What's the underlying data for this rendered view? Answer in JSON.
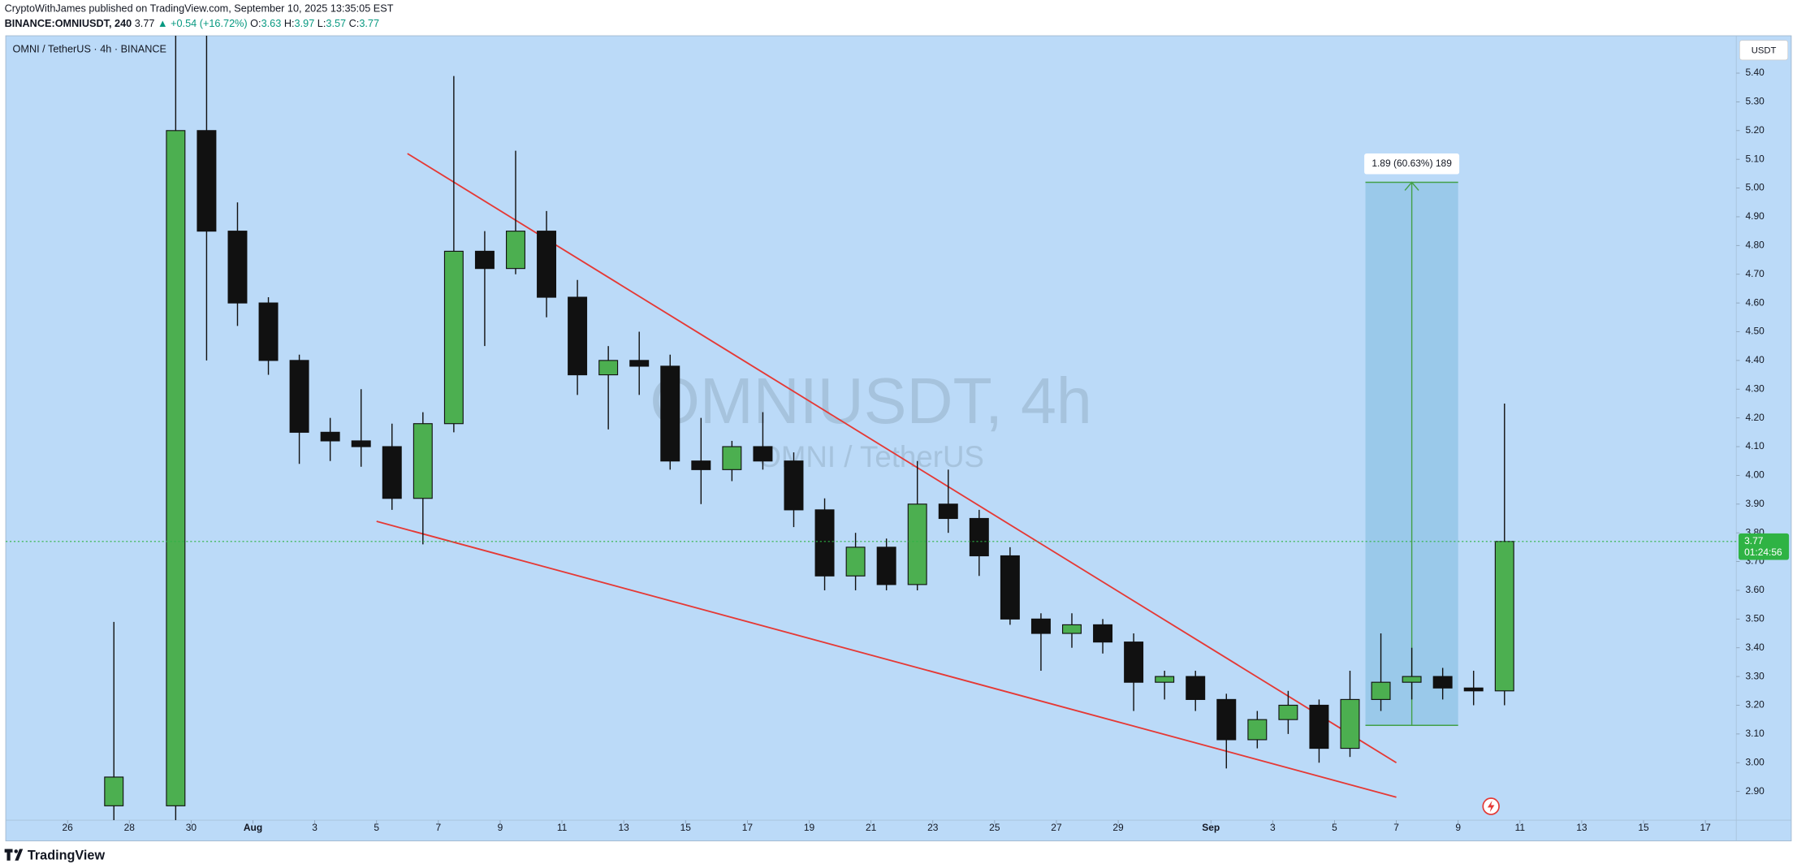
{
  "header": {
    "publisher": "CryptoWithJames published on TradingView.com, September 10, 2025 13:35:05 EST",
    "symbol": "BINANCE:OMNIUSDT, 240",
    "last": "3.77",
    "change": "▲ +0.54 (+16.72%)",
    "o_label": "O:",
    "o": "3.63",
    "h_label": "H:",
    "h": "3.97",
    "l_label": "L:",
    "l": "3.57",
    "c_label": "C:",
    "c": "3.77"
  },
  "footer": {
    "brand": "TradingView"
  },
  "chart_data": {
    "type": "candlestick",
    "legend_text": "OMNI / TetherUS · 4h · BINANCE",
    "watermark": "OMNIUSDT, 4h",
    "watermark_sub": "OMNI / TetherUS",
    "currency": "USDT",
    "up_color": "#4caf50",
    "down_color": "#111111",
    "x": [
      "2025-07-27",
      "2025-07-29",
      "2025-07-30",
      "2025-07-31",
      "2025-08-01",
      "2025-08-02",
      "2025-08-03",
      "2025-08-04",
      "2025-08-05",
      "2025-08-06",
      "2025-08-07",
      "2025-08-08",
      "2025-08-09",
      "2025-08-10",
      "2025-08-11",
      "2025-08-12",
      "2025-08-13",
      "2025-08-14",
      "2025-08-15",
      "2025-08-16",
      "2025-08-17",
      "2025-08-18",
      "2025-08-19",
      "2025-08-20",
      "2025-08-21",
      "2025-08-22",
      "2025-08-23",
      "2025-08-24",
      "2025-08-25",
      "2025-08-26",
      "2025-08-27",
      "2025-08-28",
      "2025-08-29",
      "2025-08-30",
      "2025-08-31",
      "2025-09-01",
      "2025-09-02",
      "2025-09-03",
      "2025-09-04",
      "2025-09-05",
      "2025-09-06",
      "2025-09-07",
      "2025-09-08",
      "2025-09-09",
      "2025-09-10"
    ],
    "open": [
      2.85,
      2.85,
      5.2,
      4.85,
      4.6,
      4.4,
      4.15,
      4.12,
      4.1,
      3.92,
      4.18,
      4.78,
      4.72,
      4.85,
      4.62,
      4.35,
      4.4,
      4.38,
      4.05,
      4.02,
      4.1,
      4.05,
      3.88,
      3.65,
      3.75,
      3.62,
      3.9,
      3.85,
      3.72,
      3.5,
      3.45,
      3.48,
      3.42,
      3.28,
      3.3,
      3.22,
      3.08,
      3.15,
      3.2,
      3.05,
      3.22,
      3.28,
      3.3,
      3.26,
      3.25
    ],
    "high": [
      3.49,
      5.53,
      5.53,
      4.95,
      4.62,
      4.42,
      4.2,
      4.3,
      4.18,
      4.22,
      5.39,
      4.85,
      5.13,
      4.92,
      4.68,
      4.45,
      4.5,
      4.42,
      4.2,
      4.12,
      4.22,
      4.08,
      3.92,
      3.8,
      3.78,
      4.05,
      4.02,
      3.88,
      3.75,
      3.52,
      3.52,
      3.5,
      3.45,
      3.32,
      3.32,
      3.24,
      3.18,
      3.25,
      3.22,
      3.32,
      3.45,
      3.4,
      3.33,
      3.32,
      4.25
    ],
    "low": [
      2.8,
      2.8,
      4.4,
      4.52,
      4.35,
      4.04,
      4.05,
      4.03,
      3.88,
      3.76,
      4.15,
      4.45,
      4.7,
      4.55,
      4.28,
      4.16,
      4.28,
      4.02,
      3.9,
      3.98,
      4.02,
      3.82,
      3.6,
      3.6,
      3.6,
      3.6,
      3.8,
      3.65,
      3.48,
      3.32,
      3.4,
      3.38,
      3.18,
      3.22,
      3.18,
      2.98,
      3.05,
      3.1,
      3.0,
      3.02,
      3.18,
      3.22,
      3.22,
      3.2,
      3.2
    ],
    "close": [
      2.95,
      5.2,
      4.85,
      4.6,
      4.4,
      4.15,
      4.12,
      4.1,
      3.92,
      4.18,
      4.78,
      4.72,
      4.85,
      4.62,
      4.35,
      4.4,
      4.38,
      4.05,
      4.02,
      4.1,
      4.05,
      3.88,
      3.65,
      3.75,
      3.62,
      3.9,
      3.85,
      3.72,
      3.5,
      3.45,
      3.48,
      3.42,
      3.28,
      3.3,
      3.22,
      3.08,
      3.15,
      3.2,
      3.05,
      3.22,
      3.28,
      3.3,
      3.26,
      3.25,
      3.77
    ],
    "xlim": [
      "2025-07-24",
      "2025-09-18"
    ],
    "xticks": [
      {
        "value": "2025-07-26",
        "label": "26"
      },
      {
        "value": "2025-07-28",
        "label": "28"
      },
      {
        "value": "2025-07-30",
        "label": "30"
      },
      {
        "value": "2025-08-01",
        "label": "Aug"
      },
      {
        "value": "2025-08-03",
        "label": "3"
      },
      {
        "value": "2025-08-05",
        "label": "5"
      },
      {
        "value": "2025-08-07",
        "label": "7"
      },
      {
        "value": "2025-08-09",
        "label": "9"
      },
      {
        "value": "2025-08-11",
        "label": "11"
      },
      {
        "value": "2025-08-13",
        "label": "13"
      },
      {
        "value": "2025-08-15",
        "label": "15"
      },
      {
        "value": "2025-08-17",
        "label": "17"
      },
      {
        "value": "2025-08-19",
        "label": "19"
      },
      {
        "value": "2025-08-21",
        "label": "21"
      },
      {
        "value": "2025-08-23",
        "label": "23"
      },
      {
        "value": "2025-08-25",
        "label": "25"
      },
      {
        "value": "2025-08-27",
        "label": "27"
      },
      {
        "value": "2025-08-29",
        "label": "29"
      },
      {
        "value": "2025-09-01",
        "label": "Sep"
      },
      {
        "value": "2025-09-03",
        "label": "3"
      },
      {
        "value": "2025-09-05",
        "label": "5"
      },
      {
        "value": "2025-09-07",
        "label": "7"
      },
      {
        "value": "2025-09-09",
        "label": "9"
      },
      {
        "value": "2025-09-11",
        "label": "11"
      },
      {
        "value": "2025-09-13",
        "label": "13"
      },
      {
        "value": "2025-09-15",
        "label": "15"
      },
      {
        "value": "2025-09-17",
        "label": "17"
      }
    ],
    "ylim": [
      2.8,
      5.53
    ],
    "yticks": [
      {
        "value": 2.9,
        "label": "2.90"
      },
      {
        "value": 3.0,
        "label": "3.00"
      },
      {
        "value": 3.1,
        "label": "3.10"
      },
      {
        "value": 3.2,
        "label": "3.20"
      },
      {
        "value": 3.3,
        "label": "3.30"
      },
      {
        "value": 3.4,
        "label": "3.40"
      },
      {
        "value": 3.5,
        "label": "3.50"
      },
      {
        "value": 3.6,
        "label": "3.60"
      },
      {
        "value": 3.7,
        "label": "3.70"
      },
      {
        "value": 3.8,
        "label": "3.80"
      },
      {
        "value": 3.9,
        "label": "3.90"
      },
      {
        "value": 4.0,
        "label": "4.00"
      },
      {
        "value": 4.1,
        "label": "4.10"
      },
      {
        "value": 4.2,
        "label": "4.20"
      },
      {
        "value": 4.3,
        "label": "4.30"
      },
      {
        "value": 4.4,
        "label": "4.40"
      },
      {
        "value": 4.5,
        "label": "4.50"
      },
      {
        "value": 4.6,
        "label": "4.60"
      },
      {
        "value": 4.7,
        "label": "4.70"
      },
      {
        "value": 4.8,
        "label": "4.80"
      },
      {
        "value": 4.9,
        "label": "4.90"
      },
      {
        "value": 5.0,
        "label": "5.00"
      },
      {
        "value": 5.1,
        "label": "5.10"
      },
      {
        "value": 5.2,
        "label": "5.20"
      },
      {
        "value": 5.3,
        "label": "5.30"
      },
      {
        "value": 5.4,
        "label": "5.40"
      }
    ],
    "trendlines": [
      {
        "color": "#e53935",
        "x": [
          "2025-08-06",
          "2025-09-07"
        ],
        "y": [
          5.12,
          3.0
        ]
      },
      {
        "color": "#e53935",
        "x": [
          "2025-08-05",
          "2025-09-07"
        ],
        "y": [
          3.84,
          2.88
        ]
      }
    ],
    "measure": {
      "x": [
        "2025-09-06",
        "2025-09-09"
      ],
      "y": [
        3.13,
        5.02
      ],
      "label": "1.89 (60.63%) 189",
      "color": "#43a047"
    },
    "last_price": {
      "value": 3.77,
      "label": "3.77",
      "countdown": "01:24:56",
      "color": "#2fb344"
    }
  }
}
